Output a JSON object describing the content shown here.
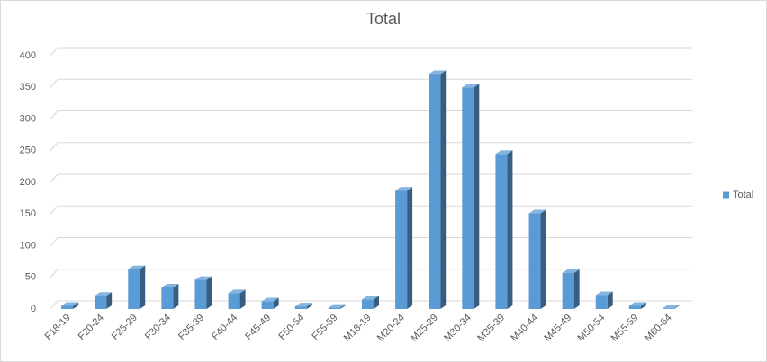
{
  "chart_data": {
    "type": "bar3d",
    "title": "Total",
    "categories": [
      "F18-19",
      "F20-24",
      "F25-29",
      "F30-34",
      "F35-39",
      "F40-44",
      "F45-49",
      "F50-54",
      "F55-59",
      "M18-19",
      "M20-24",
      "M25-29",
      "M30-34",
      "M35-39",
      "M40-44",
      "M45-49",
      "M50-54",
      "M55-59",
      "M60-64"
    ],
    "series": [
      {
        "name": "Total",
        "color": "#5b9bd5",
        "values": [
          5,
          21,
          63,
          34,
          46,
          25,
          12,
          4,
          2,
          15,
          187,
          371,
          350,
          245,
          151,
          57,
          22,
          5,
          1
        ]
      }
    ],
    "ylim": [
      0,
      400
    ],
    "yticks": [
      0,
      50,
      100,
      150,
      200,
      250,
      300,
      350,
      400
    ],
    "grid": true,
    "legend": "right"
  }
}
